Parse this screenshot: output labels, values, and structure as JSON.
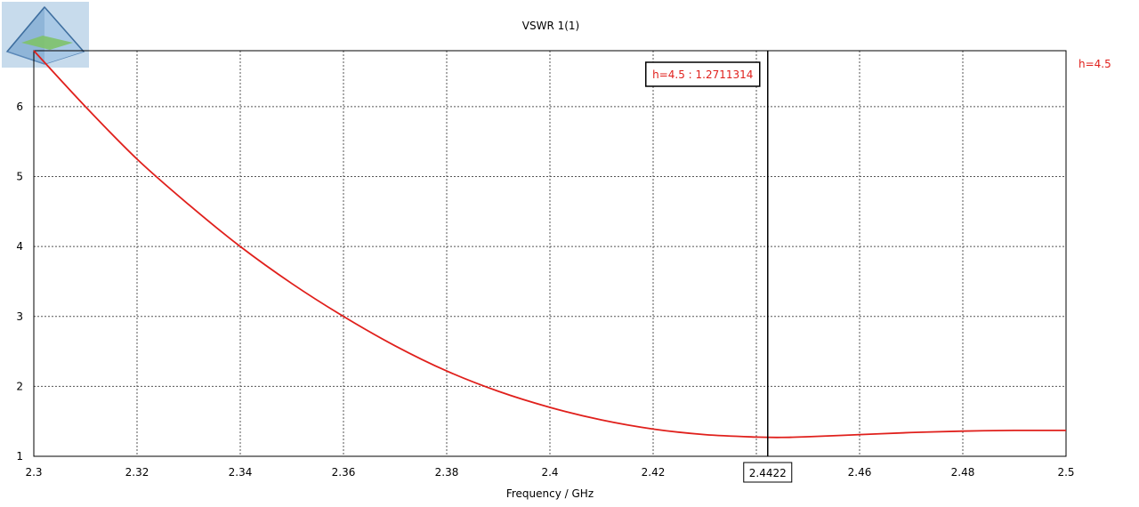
{
  "chart_data": {
    "type": "line",
    "title": "VSWR 1(1)",
    "xlabel": "Frequency / GHz",
    "ylabel": "",
    "xlim": [
      2.3,
      2.5
    ],
    "ylim": [
      1,
      6.8
    ],
    "x_ticks": [
      "2.3",
      "2.32",
      "2.34",
      "2.36",
      "2.38",
      "2.4",
      "2.42",
      "2.44",
      "2.46",
      "2.48",
      "2.5"
    ],
    "y_ticks": [
      "1",
      "2",
      "3",
      "4",
      "5",
      "6"
    ],
    "grid": true,
    "legend_position": "right",
    "series": [
      {
        "name": "h=4.5",
        "color": "#e0201c",
        "x": [
          2.3,
          2.31,
          2.32,
          2.33,
          2.34,
          2.35,
          2.36,
          2.37,
          2.38,
          2.39,
          2.4,
          2.41,
          2.42,
          2.43,
          2.44,
          2.445,
          2.45,
          2.46,
          2.47,
          2.48,
          2.49,
          2.5
        ],
        "y": [
          6.8,
          6.0,
          5.25,
          4.6,
          4.0,
          3.47,
          3.0,
          2.58,
          2.22,
          1.93,
          1.7,
          1.52,
          1.39,
          1.31,
          1.275,
          1.27,
          1.28,
          1.31,
          1.34,
          1.36,
          1.37,
          1.37
        ]
      }
    ],
    "marker": {
      "x": 2.4422,
      "x_label": "2.4422",
      "label": "h=4.5 : 1.2711314"
    }
  }
}
